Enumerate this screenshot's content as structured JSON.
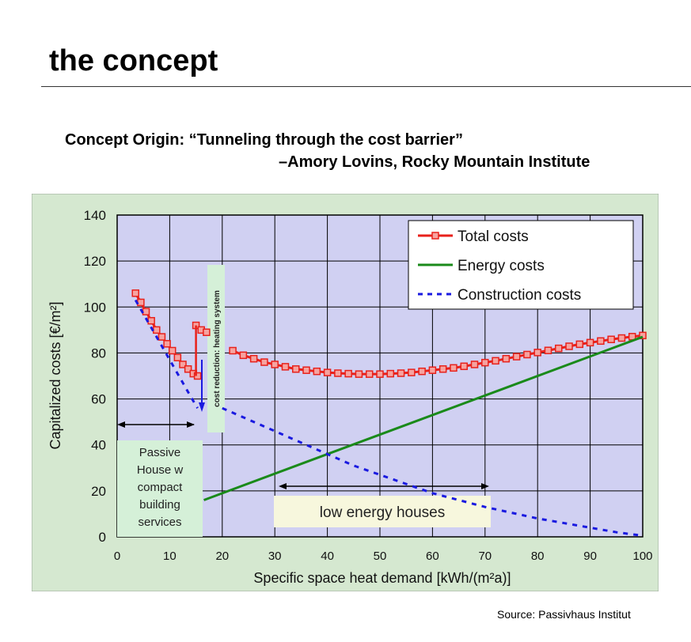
{
  "slide": {
    "title": "the concept",
    "quote_line1": "Concept Origin: “Tunneling through the cost barrier”",
    "quote_line2": "–Amory Lovins, Rocky Mountain Institute",
    "source": "Source: Passivhaus Institut"
  },
  "chart_data": {
    "type": "line",
    "xlabel": "Specific space  heat demand [kWh/(m²a)]",
    "ylabel": "Capitalized costs [€/m²]",
    "xlim": [
      0,
      100
    ],
    "ylim": [
      0,
      140
    ],
    "xticks": [
      0,
      10,
      20,
      30,
      40,
      50,
      60,
      70,
      80,
      90,
      100
    ],
    "yticks": [
      0,
      20,
      40,
      60,
      80,
      100,
      120,
      140
    ],
    "grid": true,
    "legend_position": "top-right",
    "series": [
      {
        "name": "Total costs",
        "color": "#e8211b",
        "marker": "square",
        "segments": [
          [
            [
              3.5,
              106
            ],
            [
              4.5,
              102
            ],
            [
              5.5,
              98
            ],
            [
              6.5,
              94
            ],
            [
              7.5,
              90
            ],
            [
              8.5,
              87
            ],
            [
              9.5,
              84
            ],
            [
              10.5,
              81
            ],
            [
              11.5,
              78
            ],
            [
              12.5,
              75
            ],
            [
              13.5,
              73
            ],
            [
              14.5,
              71
            ],
            [
              15.3,
              70
            ]
          ],
          [
            [
              15.0,
              92
            ],
            [
              16.0,
              90
            ],
            [
              17.0,
              89
            ]
          ],
          [
            [
              22,
              81
            ],
            [
              24,
              79
            ],
            [
              26,
              77.5
            ],
            [
              28,
              76
            ],
            [
              30,
              75
            ],
            [
              32,
              74
            ],
            [
              34,
              73
            ],
            [
              36,
              72.5
            ],
            [
              38,
              72
            ],
            [
              40,
              71.5
            ],
            [
              42,
              71.2
            ],
            [
              44,
              71
            ],
            [
              46,
              70.8
            ],
            [
              48,
              70.8
            ],
            [
              50,
              70.8
            ],
            [
              52,
              71
            ],
            [
              54,
              71.2
            ],
            [
              56,
              71.5
            ],
            [
              58,
              72
            ],
            [
              60,
              72.5
            ],
            [
              62,
              73
            ],
            [
              64,
              73.5
            ],
            [
              66,
              74.2
            ],
            [
              68,
              75
            ],
            [
              70,
              75.8
            ],
            [
              72,
              76.6
            ],
            [
              74,
              77.5
            ],
            [
              76,
              78.4
            ],
            [
              78,
              79.3
            ],
            [
              80,
              80.2
            ],
            [
              82,
              81.1
            ],
            [
              84,
              82
            ],
            [
              86,
              82.9
            ],
            [
              88,
              83.8
            ],
            [
              90,
              84.5
            ],
            [
              92,
              85.2
            ],
            [
              94,
              85.9
            ],
            [
              96,
              86.5
            ],
            [
              98,
              87.1
            ],
            [
              100,
              87.6
            ]
          ]
        ]
      },
      {
        "name": "Energy costs",
        "color": "#1a8a1a",
        "points": [
          [
            16.5,
            16
          ],
          [
            100,
            87
          ]
        ]
      },
      {
        "name": "Construction costs",
        "color": "#1a1ae0",
        "dashed": true,
        "segments": [
          [
            [
              3.5,
              103
            ],
            [
              6,
              93
            ],
            [
              8,
              85
            ],
            [
              10,
              77
            ],
            [
              12,
              69
            ],
            [
              14,
              61
            ],
            [
              15.3,
              56
            ]
          ],
          [
            [
              20,
              56
            ],
            [
              25,
              51
            ],
            [
              30,
              46
            ],
            [
              35,
              41
            ],
            [
              40,
              36
            ],
            [
              45,
              31
            ],
            [
              50,
              27
            ],
            [
              55,
              23
            ],
            [
              60,
              19
            ],
            [
              65,
              16
            ],
            [
              70,
              13
            ],
            [
              75,
              10.5
            ],
            [
              80,
              8
            ],
            [
              85,
              6
            ],
            [
              90,
              4
            ],
            [
              95,
              2
            ],
            [
              100,
              0.5
            ]
          ]
        ]
      }
    ],
    "annotations": [
      {
        "id": "passive-house",
        "lines": [
          "Passive",
          "House w",
          "compact",
          "building",
          "services"
        ]
      },
      {
        "id": "cost-reduction",
        "text": "cost reduction: heating system"
      },
      {
        "id": "low-energy",
        "text": "low energy houses"
      }
    ]
  }
}
